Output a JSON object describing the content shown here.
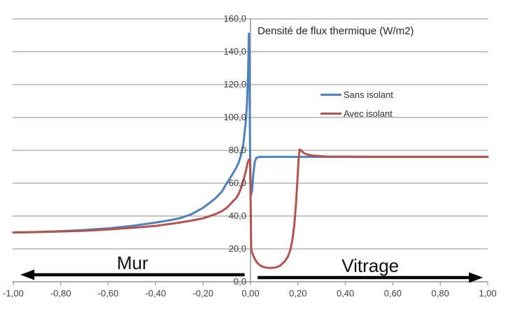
{
  "chart_data": {
    "type": "line",
    "title": "Densité de flux thermique (W/m2)",
    "grid": true,
    "legend": {
      "position": "center-right",
      "entries": [
        "Sans isolant",
        "Avec isolant"
      ]
    },
    "x_axis": {
      "min": -1.0,
      "max": 1.0,
      "tick_step": 0.2,
      "tick_labels": [
        "-1,00",
        "-0,80",
        "-0,60",
        "-0,40",
        "-0,20",
        "0,00",
        "0,20",
        "0,40",
        "0,60",
        "0,80",
        "1,00"
      ],
      "tick_values": [
        -1.0,
        -0.8,
        -0.6,
        -0.4,
        -0.2,
        0.0,
        0.2,
        0.4,
        0.6,
        0.8,
        1.0
      ]
    },
    "y_axis": {
      "min": 0,
      "max": 160,
      "tick_step": 20,
      "tick_labels": [
        "0,0",
        "20,0",
        "40,0",
        "60,0",
        "80,0",
        "100,0",
        "120,0",
        "140,0",
        "160,0"
      ],
      "tick_values": [
        0,
        20,
        40,
        60,
        80,
        100,
        120,
        140,
        160
      ]
    },
    "series": [
      {
        "name": "Sans isolant",
        "color": "#4F81BD",
        "points": [
          [
            -1.0,
            30
          ],
          [
            -0.9,
            30.3
          ],
          [
            -0.8,
            30.8
          ],
          [
            -0.7,
            31.5
          ],
          [
            -0.6,
            32.5
          ],
          [
            -0.5,
            34
          ],
          [
            -0.4,
            36
          ],
          [
            -0.35,
            37.2
          ],
          [
            -0.3,
            38.6
          ],
          [
            -0.25,
            41
          ],
          [
            -0.2,
            45
          ],
          [
            -0.15,
            50.5
          ],
          [
            -0.12,
            55
          ],
          [
            -0.1,
            60
          ],
          [
            -0.08,
            64.5
          ],
          [
            -0.06,
            69.5
          ],
          [
            -0.05,
            72.5
          ],
          [
            -0.04,
            77
          ],
          [
            -0.03,
            84
          ],
          [
            -0.02,
            97
          ],
          [
            -0.015,
            108
          ],
          [
            -0.01,
            128
          ],
          [
            -0.007,
            151
          ],
          [
            -0.004,
            122
          ],
          [
            -0.002,
            84
          ],
          [
            0.0,
            62
          ],
          [
            0.003,
            53
          ],
          [
            0.007,
            56
          ],
          [
            0.012,
            66
          ],
          [
            0.018,
            73
          ],
          [
            0.025,
            75.5
          ],
          [
            0.04,
            76
          ],
          [
            0.1,
            76
          ],
          [
            0.2,
            76
          ],
          [
            0.4,
            76
          ],
          [
            0.7,
            76
          ],
          [
            1.0,
            76
          ]
        ]
      },
      {
        "name": "Avec isolant",
        "color": "#B3534F",
        "points": [
          [
            -1.0,
            30
          ],
          [
            -0.9,
            30.2
          ],
          [
            -0.8,
            30.6
          ],
          [
            -0.7,
            31
          ],
          [
            -0.6,
            31.8
          ],
          [
            -0.5,
            32.8
          ],
          [
            -0.4,
            34
          ],
          [
            -0.3,
            36
          ],
          [
            -0.25,
            37.2
          ],
          [
            -0.2,
            38.6
          ],
          [
            -0.15,
            41
          ],
          [
            -0.12,
            43
          ],
          [
            -0.1,
            45
          ],
          [
            -0.08,
            48
          ],
          [
            -0.06,
            51
          ],
          [
            -0.05,
            53.5
          ],
          [
            -0.04,
            57
          ],
          [
            -0.03,
            61.5
          ],
          [
            -0.02,
            67
          ],
          [
            -0.012,
            72.5
          ],
          [
            -0.006,
            74.5
          ],
          [
            -0.002,
            74
          ],
          [
            0.001,
            45
          ],
          [
            0.003,
            20
          ],
          [
            0.006,
            18
          ],
          [
            0.01,
            16.5
          ],
          [
            0.018,
            14
          ],
          [
            0.028,
            11.5
          ],
          [
            0.045,
            9.5
          ],
          [
            0.065,
            8.6
          ],
          [
            0.085,
            8.4
          ],
          [
            0.105,
            8.6
          ],
          [
            0.125,
            9.8
          ],
          [
            0.145,
            12.5
          ],
          [
            0.158,
            15.5
          ],
          [
            0.168,
            19.5
          ],
          [
            0.176,
            25
          ],
          [
            0.185,
            35
          ],
          [
            0.192,
            48
          ],
          [
            0.198,
            62
          ],
          [
            0.203,
            75
          ],
          [
            0.207,
            80.5
          ],
          [
            0.213,
            80
          ],
          [
            0.222,
            78.6
          ],
          [
            0.235,
            77.6
          ],
          [
            0.26,
            76.8
          ],
          [
            0.32,
            76.2
          ],
          [
            0.5,
            76.1
          ],
          [
            0.75,
            76.1
          ],
          [
            1.0,
            76.1
          ]
        ]
      }
    ],
    "annotations": [
      {
        "label": "Mur",
        "arrow_direction": "left",
        "x_range": [
          -0.97,
          -0.025
        ]
      },
      {
        "label": "Vitrage",
        "arrow_direction": "right",
        "x_range": [
          0.03,
          0.98
        ]
      }
    ]
  },
  "colors": {
    "background": "#FFFFFF",
    "gridline": "#8C8C8C",
    "axis": "#808080",
    "series_blue": "#4F81BD",
    "series_red": "#B3534F",
    "annotation": "#000000",
    "label_text": "#3F3F3F",
    "title_text": "#262626"
  }
}
